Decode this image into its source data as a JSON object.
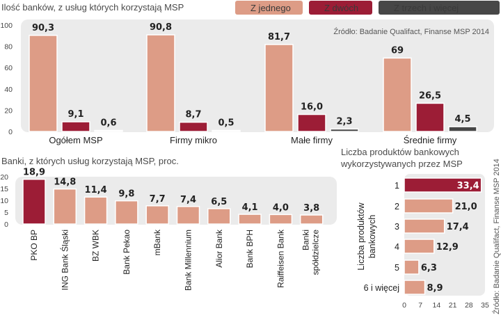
{
  "colors": {
    "first": "#dd9c86",
    "second": "#9c1d36",
    "third": "#474747",
    "panel": "#ebebeb",
    "bar_stroke": "#ffffff",
    "value_inverse": "#ffffff"
  },
  "chart_data": [
    {
      "type": "bar",
      "title": "Ilość banków, z usług których korzystają MSP",
      "source": "Źródło: Badanie Qualifact, Finanse MSP 2014",
      "categories": [
        "Ogółem MSP",
        "Firmy mikro",
        "Małe firmy",
        "Średnie firmy"
      ],
      "series": [
        {
          "name": "Z jednego",
          "values": [
            90.3,
            90.8,
            81.7,
            69
          ],
          "labels": [
            "90,3",
            "90,8",
            "81,7",
            "69"
          ]
        },
        {
          "name": "Z dwóch",
          "values": [
            9.1,
            8.7,
            16.0,
            26.5
          ],
          "labels": [
            "9,1",
            "8,7",
            "16,0",
            "26,5"
          ]
        },
        {
          "name": "Z trzech i więcej",
          "values": [
            0.6,
            0.5,
            2.3,
            4.5
          ],
          "labels": [
            "0,6",
            "0,5",
            "2,3",
            "4,5"
          ]
        }
      ],
      "yticks": [
        "0",
        "20",
        "40",
        "60",
        "80",
        "100"
      ],
      "ylim": [
        0,
        100
      ]
    },
    {
      "type": "bar",
      "title": "Banki, z których usług korzystają MSP, proc.",
      "categories": [
        "PKO BP",
        "ING Bank Śląski",
        "BZ WBK",
        "Bank Pekao",
        "mBank",
        "Bank Millennium",
        "Alior Bank",
        "Bank BPH",
        "Raiffeisen Bank",
        "Banki spółdzielcze"
      ],
      "values": [
        18.9,
        14.8,
        11.4,
        9.8,
        7.7,
        7.4,
        6.5,
        4.1,
        4.0,
        3.8
      ],
      "labels": [
        "18,9",
        "14,8",
        "11,4",
        "9,8",
        "7,7",
        "7,4",
        "6,5",
        "4,1",
        "4,0",
        "3,8"
      ],
      "yticks": [
        "0",
        "5",
        "10",
        "15",
        "20"
      ],
      "ylim": [
        0,
        20
      ]
    },
    {
      "type": "bar",
      "orientation": "horizontal",
      "title": "Liczba produktów bankowych wykorzystywanych przez MSP",
      "title_lines": [
        "Liczba produktów bankowych",
        "wykorzystywanych przez MSP"
      ],
      "ylabel": "Liczba produktów bankowych",
      "ylabel_lines": [
        "Liczba produktów",
        "bankowych"
      ],
      "source": "Źródło: Badanie Qualifact, Finanse MSP 2014",
      "categories": [
        "1",
        "2",
        "3",
        "4",
        "5",
        "6 i więcej"
      ],
      "values": [
        33.4,
        21.0,
        17.4,
        12.9,
        6.3,
        8.9
      ],
      "labels": [
        "33,4",
        "21,0",
        "17,4",
        "12,9",
        "6,3",
        "8,9"
      ],
      "xticks": [
        "0",
        "7",
        "14",
        "21",
        "28",
        "35"
      ],
      "xlim": [
        0,
        35
      ]
    }
  ]
}
